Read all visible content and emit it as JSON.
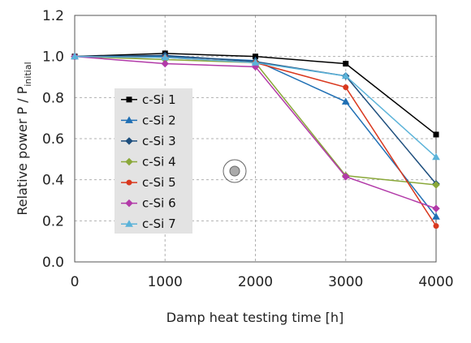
{
  "chart_data": {
    "type": "line",
    "xlabel": "Damp heat testing time [h]",
    "ylabel_main": "Relative power P / P",
    "ylabel_sub": "initial",
    "xlim": [
      0,
      4000
    ],
    "ylim": [
      0.0,
      1.2
    ],
    "xticks": [
      0,
      1000,
      2000,
      3000,
      4000
    ],
    "xtick_labels": [
      "0",
      "1000",
      "2000",
      "3000",
      "4000"
    ],
    "yticks": [
      0.0,
      0.2,
      0.4,
      0.6,
      0.8,
      1.0,
      1.2
    ],
    "ytick_labels": [
      "0.0",
      "0.2",
      "0.4",
      "0.6",
      "0.8",
      "1.0",
      "1.2"
    ],
    "grid": "dashed",
    "legend_position": "center-left",
    "x": [
      0,
      1000,
      2000,
      3000,
      4000
    ],
    "series": [
      {
        "name": "c-Si 1",
        "color": "#000000",
        "marker": "square",
        "values": [
          1.0,
          1.015,
          1.0,
          0.965,
          0.62
        ]
      },
      {
        "name": "c-Si 2",
        "color": "#1f6fb4",
        "marker": "triangle",
        "values": [
          1.0,
          1.0,
          0.98,
          0.78,
          0.22
        ]
      },
      {
        "name": "c-Si 3",
        "color": "#1d4e7d",
        "marker": "diamond",
        "values": [
          1.0,
          1.005,
          0.975,
          0.905,
          0.38
        ]
      },
      {
        "name": "c-Si 4",
        "color": "#8aa83a",
        "marker": "diamond",
        "values": [
          1.0,
          0.985,
          0.97,
          0.42,
          0.375
        ]
      },
      {
        "name": "c-Si 5",
        "color": "#d9381e",
        "marker": "circle",
        "values": [
          1.0,
          0.995,
          0.97,
          0.85,
          0.175
        ]
      },
      {
        "name": "c-Si 6",
        "color": "#b23aa8",
        "marker": "diamond",
        "values": [
          1.0,
          0.965,
          0.95,
          0.415,
          0.26
        ]
      },
      {
        "name": "c-Si 7",
        "color": "#5bb3d9",
        "marker": "triangle",
        "values": [
          1.0,
          0.995,
          0.97,
          0.905,
          0.51
        ]
      }
    ]
  }
}
